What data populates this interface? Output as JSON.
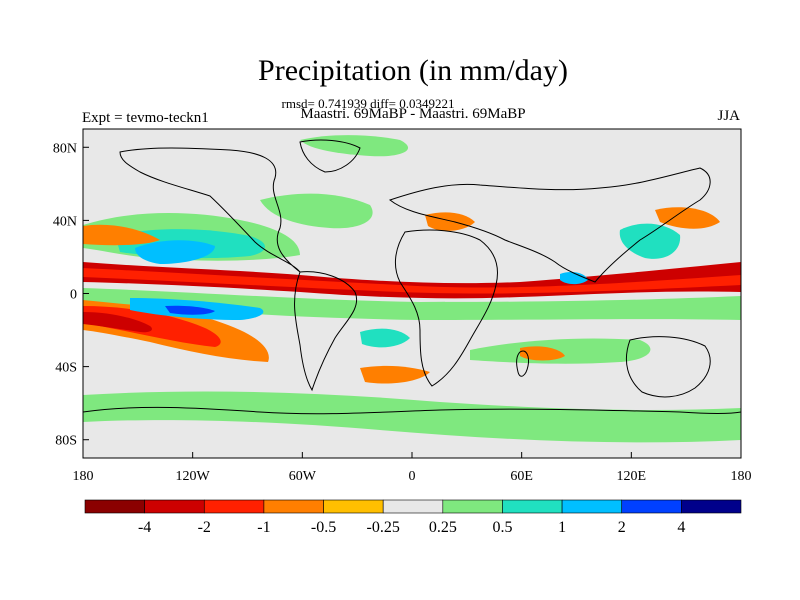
{
  "title": "Precipitation (in mm/day)",
  "stats": "rmsd= 0.741939 diff= 0.0349221",
  "left_label": "Expt = tevmo-teckn1",
  "center_label": "Maastri.  69MaBP - Maastri.  69MaBP",
  "right_label": "JJA",
  "y_axis": {
    "ticks": [
      "80N",
      "40N",
      "0",
      "40S",
      "80S"
    ],
    "values": [
      80,
      40,
      0,
      -40,
      -80
    ]
  },
  "x_axis": {
    "ticks": [
      "180",
      "120W",
      "60W",
      "0",
      "60E",
      "120E",
      "180"
    ],
    "values": [
      -180,
      -120,
      -60,
      0,
      60,
      120,
      180
    ]
  },
  "colorbar": {
    "labels": [
      "-4",
      "-2",
      "-1",
      "-0.5",
      "-0.25",
      "0.25",
      "0.5",
      "1",
      "2",
      "4"
    ],
    "colors": [
      "#8b0000",
      "#cd0000",
      "#ff2000",
      "#ff7f00",
      "#ffbf00",
      "#e8e8e8",
      "#7fe87f",
      "#20e0c0",
      "#00bfff",
      "#0040ff",
      "#00008b"
    ]
  },
  "colors": {
    "ocean_neutral": "#e8e8e8",
    "coast": "#000000"
  }
}
